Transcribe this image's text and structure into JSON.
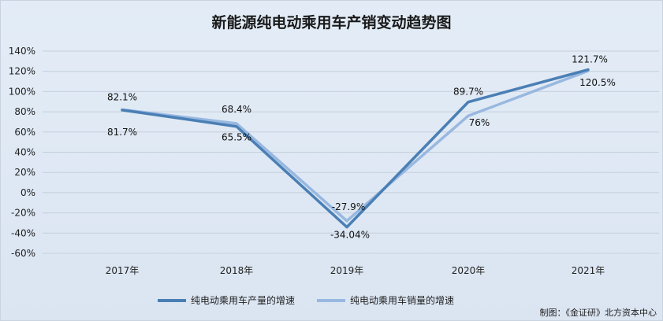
{
  "chart_data": {
    "type": "line",
    "title": "新能源纯电动乘用车产销变动趋势图",
    "categories": [
      "2017年",
      "2018年",
      "2019年",
      "2020年",
      "2021年"
    ],
    "series": [
      {
        "name": "纯电动乘用车产量的增速",
        "values": [
          81.7,
          65.5,
          -34.04,
          89.7,
          121.7
        ],
        "labels": [
          "81.7%",
          "65.5%",
          "-34.04%",
          "89.7%",
          "121.7%"
        ],
        "color": "#4a7fb5"
      },
      {
        "name": "纯电动乘用车销量的增速",
        "values": [
          82.1,
          68.4,
          -27.9,
          76,
          120.5
        ],
        "labels": [
          "82.1%",
          "68.4%",
          "-27.9%",
          "76%",
          "120.5%"
        ],
        "color": "#98b8e0"
      }
    ],
    "ylim": [
      -60,
      140
    ],
    "yticks": [
      -60,
      -40,
      -20,
      0,
      20,
      40,
      60,
      80,
      100,
      120,
      140
    ],
    "ytick_labels": [
      "-60%",
      "-40%",
      "-20%",
      "0%",
      "20%",
      "40%",
      "60%",
      "80%",
      "100%",
      "120%",
      "140%"
    ],
    "grid": true,
    "legend": "bottom"
  },
  "source": "制图：《金证研》北方资本中心"
}
